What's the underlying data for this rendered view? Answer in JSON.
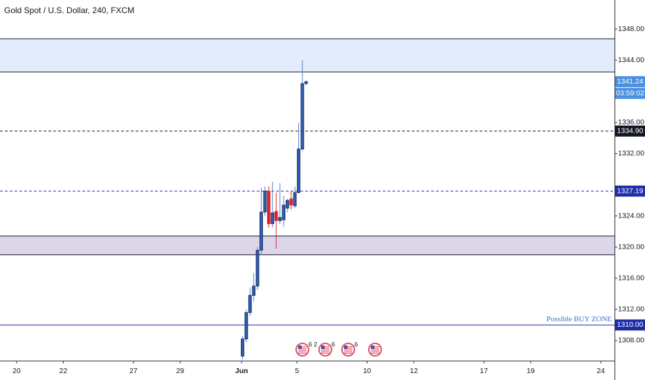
{
  "chart_data": {
    "type": "candlestick",
    "title": "Gold Spot / U.S. Dollar, 240, FXCM",
    "up_color": "#2f5fb3",
    "down_color": "#e0202a",
    "edge_color": "#0d1f4d",
    "xlim": [
      -0.71,
      25.59
    ],
    "ylim": [
      1305.42,
      1351.73
    ],
    "xticks": [
      {
        "value": 0,
        "label": "20"
      },
      {
        "value": 2,
        "label": "22"
      },
      {
        "value": 5,
        "label": "27"
      },
      {
        "value": 7,
        "label": "29"
      },
      {
        "value": 9.63,
        "label": "Jun"
      },
      {
        "value": 12,
        "label": "5"
      },
      {
        "value": 15,
        "label": "10"
      },
      {
        "value": 17,
        "label": "12"
      },
      {
        "value": 20,
        "label": "17"
      },
      {
        "value": 22,
        "label": "19"
      },
      {
        "value": 25,
        "label": "24"
      }
    ],
    "yticks": [
      {
        "value": 1348,
        "label": "1348.00"
      },
      {
        "value": 1344,
        "label": "1344.00"
      },
      {
        "value": 1336,
        "label": "1336.00"
      },
      {
        "value": 1332,
        "label": "1332.00"
      },
      {
        "value": 1324,
        "label": "1324.00"
      },
      {
        "value": 1320,
        "label": "1320.00"
      },
      {
        "value": 1316,
        "label": "1316.00"
      },
      {
        "value": 1312,
        "label": "1312.00"
      },
      {
        "value": 1308,
        "label": "1308.00"
      }
    ],
    "candles": [
      {
        "x": 9.67,
        "open": 1306.0,
        "high": 1308.6,
        "low": 1305.6,
        "close": 1308.2
      },
      {
        "x": 9.83,
        "open": 1308.2,
        "high": 1312.0,
        "low": 1307.8,
        "close": 1311.6
      },
      {
        "x": 9.99,
        "open": 1311.6,
        "high": 1314.8,
        "low": 1311.2,
        "close": 1313.8
      },
      {
        "x": 10.15,
        "open": 1313.8,
        "high": 1316.7,
        "low": 1313.0,
        "close": 1315.0
      },
      {
        "x": 10.31,
        "open": 1315.0,
        "high": 1320.0,
        "low": 1314.5,
        "close": 1319.6
      },
      {
        "x": 10.47,
        "open": 1319.6,
        "high": 1327.6,
        "low": 1319.0,
        "close": 1324.5
      },
      {
        "x": 10.63,
        "open": 1324.5,
        "high": 1327.8,
        "low": 1324.0,
        "close": 1327.2
      },
      {
        "x": 10.79,
        "open": 1327.2,
        "high": 1327.8,
        "low": 1322.5,
        "close": 1323.0
      },
      {
        "x": 10.95,
        "open": 1323.0,
        "high": 1328.4,
        "low": 1322.5,
        "close": 1324.4
      },
      {
        "x": 11.11,
        "open": 1324.6,
        "high": 1327.0,
        "low": 1319.8,
        "close": 1323.4
      },
      {
        "x": 11.27,
        "open": 1323.4,
        "high": 1328.2,
        "low": 1323.0,
        "close": 1323.8
      },
      {
        "x": 11.43,
        "open": 1323.5,
        "high": 1326.6,
        "low": 1322.6,
        "close": 1325.4
      },
      {
        "x": 11.59,
        "open": 1325.0,
        "high": 1326.2,
        "low": 1324.5,
        "close": 1326.0
      },
      {
        "x": 11.75,
        "open": 1326.2,
        "high": 1327.2,
        "low": 1324.8,
        "close": 1325.4
      },
      {
        "x": 11.91,
        "open": 1325.3,
        "high": 1327.8,
        "low": 1325.0,
        "close": 1327.0
      },
      {
        "x": 12.07,
        "open": 1327.0,
        "high": 1336.0,
        "low": 1326.9,
        "close": 1332.6
      },
      {
        "x": 12.23,
        "open": 1332.6,
        "high": 1344.0,
        "low": 1332.3,
        "close": 1341.0
      },
      {
        "x": 12.39,
        "open": 1341.0,
        "high": 1341.4,
        "low": 1340.8,
        "close": 1341.24
      }
    ],
    "zones": [
      {
        "from": 1342.49,
        "to": 1346.75,
        "color": "#e3ecfb"
      },
      {
        "from": 1319.02,
        "to": 1321.42,
        "color": "#ddd6ea"
      }
    ],
    "levels": [
      {
        "value": 1334.9,
        "label": "1334.90",
        "style": "dashed",
        "color": "#131722"
      },
      {
        "value": 1327.19,
        "label": "1327.19",
        "style": "dashed",
        "color": "#1f2ea8"
      },
      {
        "value": 1310,
        "label": "1310.00",
        "style": "solid",
        "color": "#1f2ea8",
        "text": "Possible BUY ZONE"
      }
    ],
    "last_price": {
      "value": 1341.24,
      "countdown": "03:59:02",
      "color": "#4a8fe0"
    },
    "events": [
      {
        "x": 12.23,
        "label": "6 2"
      },
      {
        "x": 13.21,
        "label": "6"
      },
      {
        "x": 14.19,
        "label": "6"
      },
      {
        "x": 15.34
      }
    ]
  }
}
